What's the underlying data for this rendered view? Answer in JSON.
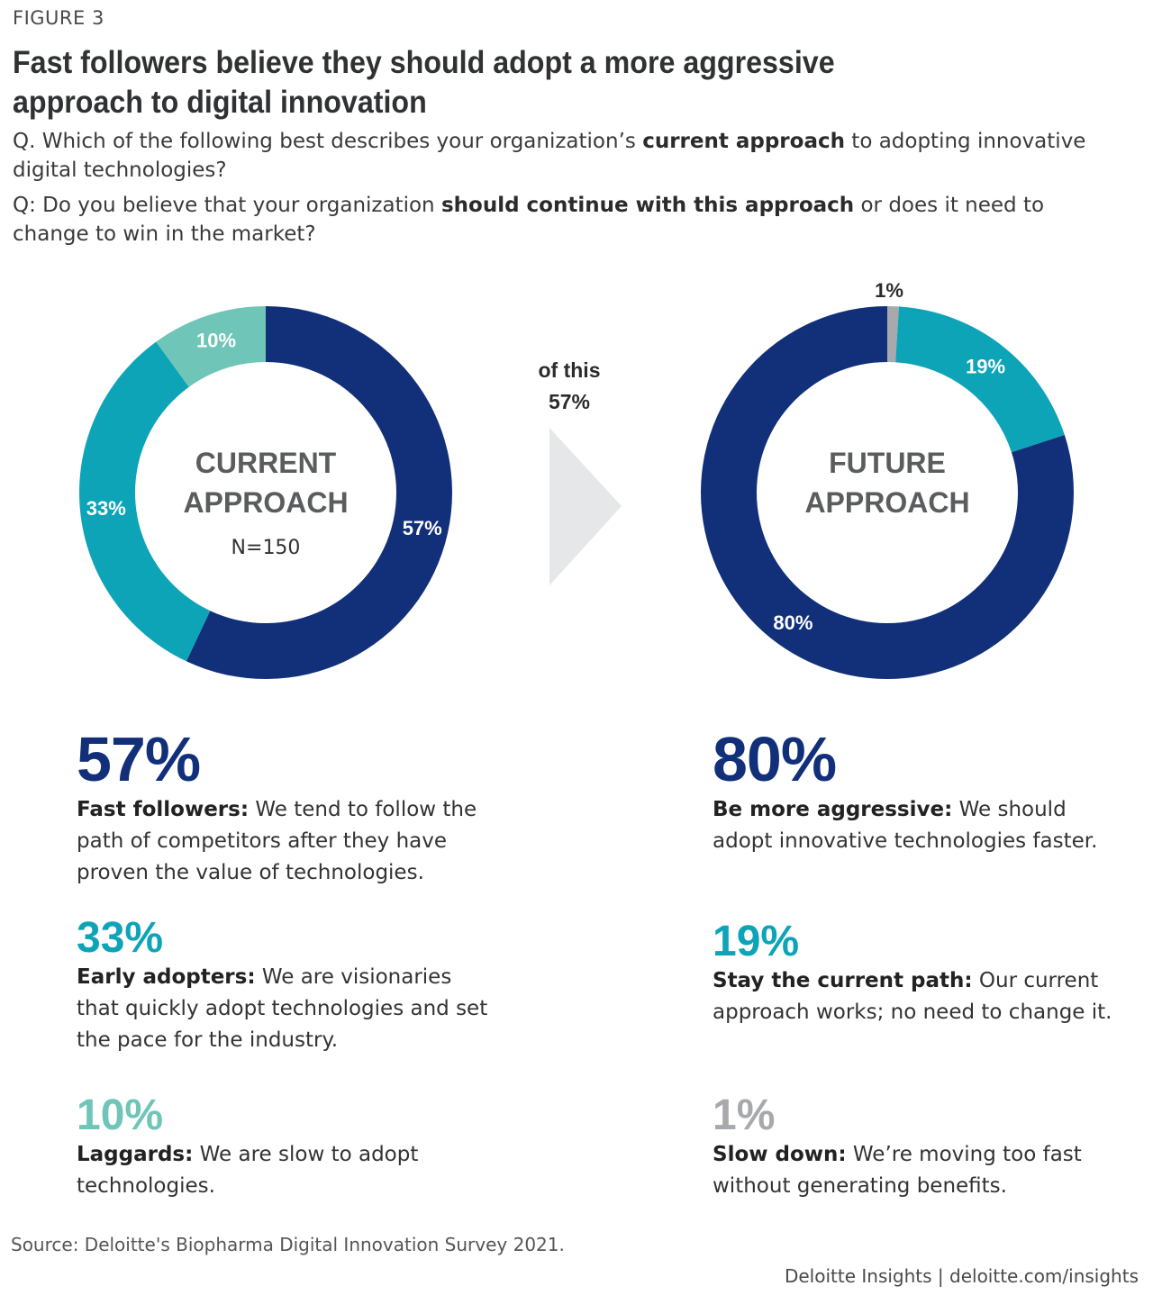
{
  "figure_label": "FIGURE 3",
  "title": "Fast followers believe they should adopt a more aggressive approach to digital innovation",
  "questions": {
    "q1": {
      "prefix": "Q. Which of the following best describes your organization’s ",
      "bold": "current approach",
      "suffix": " to adopting innovative digital technologies?"
    },
    "q2": {
      "prefix": "Q: Do you believe that your organization ",
      "bold": "should continue with this approach",
      "suffix": " or does it need to change to win in the market?"
    }
  },
  "arrow_label": [
    "of this",
    "57%"
  ],
  "chart_data": [
    {
      "type": "pie",
      "center_label": [
        "CURRENT",
        "APPROACH"
      ],
      "note": "N=150",
      "slices": [
        {
          "name": "Fast followers",
          "value": 57,
          "label": "57%",
          "color": "#12307a"
        },
        {
          "name": "Early adopters",
          "value": 33,
          "label": "33%",
          "color": "#0ea4b8"
        },
        {
          "name": "Laggards",
          "value": 10,
          "label": "10%",
          "color": "#6fc5b7"
        }
      ]
    },
    {
      "type": "pie",
      "center_label": [
        "FUTURE",
        "APPROACH"
      ],
      "slices": [
        {
          "name": "Slow down",
          "value": 1,
          "label": "1%",
          "color": "#a7a9ac"
        },
        {
          "name": "Stay the current path",
          "value": 19,
          "label": "19%",
          "color": "#0ea4b8"
        },
        {
          "name": "Be more aggressive",
          "value": 80,
          "label": "80%",
          "color": "#12307a"
        }
      ]
    }
  ],
  "legend_left": [
    {
      "pct": "57%",
      "color": "#12307a",
      "bold": "Fast followers:",
      "text": " We tend to follow the path of competitors after they have proven the value of technologies."
    },
    {
      "pct": "33%",
      "color": "#0ea4b8",
      "bold": "Early adopters:",
      "text": " We are visionaries that quickly adopt technologies and set the pace for the industry."
    },
    {
      "pct": "10%",
      "color": "#6fc5b7",
      "bold": "Laggards:",
      "text": " We are slow to adopt technologies."
    }
  ],
  "legend_right": [
    {
      "pct": "80%",
      "color": "#12307a",
      "bold": "Be more aggressive:",
      "text": " We should adopt innovative technologies faster."
    },
    {
      "pct": "19%",
      "color": "#0ea4b8",
      "bold": "Stay the current path:",
      "text": " Our current approach works; no need to change it."
    },
    {
      "pct": "1%",
      "color": "#a7a9ac",
      "bold": "Slow down:",
      "text": " We’re moving too fast without generating benefits."
    }
  ],
  "source": "Source: Deloitte's Biopharma Digital Innovation Survey 2021.",
  "brand": "Deloitte Insights | deloitte.com/insights"
}
